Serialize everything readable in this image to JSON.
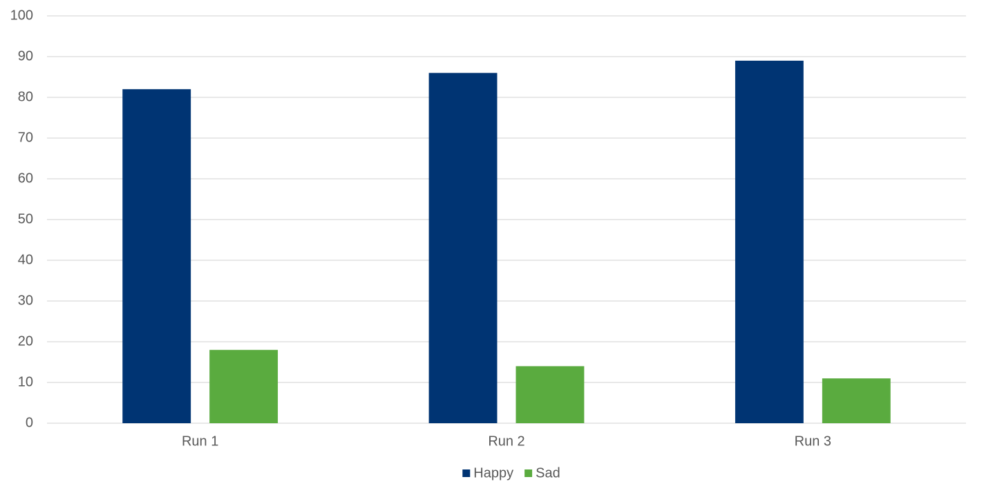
{
  "chart_data": {
    "type": "bar",
    "categories": [
      "Run 1",
      "Run 2",
      "Run 3"
    ],
    "series": [
      {
        "name": "Happy",
        "color": "#003473",
        "values": [
          82,
          86,
          89
        ]
      },
      {
        "name": "Sad",
        "color": "#5aab3f",
        "values": [
          18,
          14,
          11
        ]
      }
    ],
    "ylim": [
      0,
      100
    ],
    "yticks": [
      0,
      10,
      20,
      30,
      40,
      50,
      60,
      70,
      80,
      90,
      100
    ],
    "grid": true,
    "legend": "bottom"
  }
}
